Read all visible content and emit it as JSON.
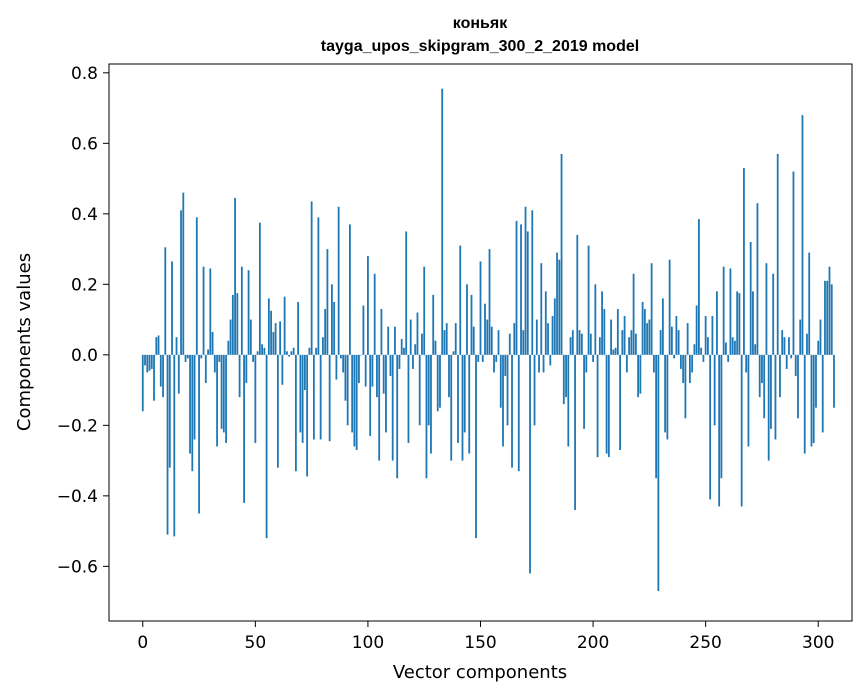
{
  "chart_data": {
    "type": "bar",
    "title": "коньяк",
    "subtitle": "tayga_upos_skipgram_300_2_2019 model",
    "xlabel": "Vector components",
    "ylabel": "Components values",
    "xlim": [
      -15,
      315
    ],
    "ylim": [
      -0.755,
      0.825
    ],
    "xticks": [
      0,
      50,
      100,
      150,
      200,
      250,
      300
    ],
    "yticks": [
      -0.6,
      -0.4,
      -0.2,
      0.0,
      0.2,
      0.4,
      0.6,
      0.8
    ],
    "xtick_labels": [
      "0",
      "50",
      "100",
      "150",
      "200",
      "250",
      "300"
    ],
    "ytick_labels": [
      "−0.6",
      "−0.4",
      "−0.2",
      "0.0",
      "0.2",
      "0.4",
      "0.6",
      "0.8"
    ],
    "grid": false,
    "bar_color": "#1f77b4",
    "values": [
      -0.16,
      -0.03,
      -0.05,
      -0.045,
      -0.04,
      -0.13,
      0.05,
      0.055,
      -0.09,
      -0.12,
      0.305,
      -0.51,
      -0.32,
      0.265,
      -0.515,
      0.05,
      -0.11,
      0.41,
      0.46,
      -0.02,
      -0.01,
      -0.28,
      -0.33,
      -0.24,
      0.39,
      -0.45,
      -0.01,
      0.25,
      -0.08,
      0.015,
      0.245,
      0.065,
      -0.05,
      -0.26,
      -0.02,
      -0.21,
      -0.22,
      -0.25,
      0.04,
      0.1,
      0.17,
      0.445,
      0.175,
      -0.12,
      0.25,
      -0.42,
      -0.08,
      0.24,
      0.1,
      -0.02,
      -0.25,
      0.01,
      0.375,
      0.03,
      0.02,
      -0.52,
      0.16,
      0.125,
      0.065,
      0.09,
      -0.32,
      0.095,
      -0.085,
      0.165,
      0.01,
      -0.005,
      0.01,
      0.02,
      -0.33,
      0.15,
      -0.22,
      -0.25,
      -0.1,
      -0.345,
      0.02,
      0.435,
      -0.24,
      0.02,
      0.39,
      -0.24,
      0.05,
      0.13,
      0.3,
      -0.245,
      0.2,
      0.15,
      -0.07,
      0.42,
      -0.01,
      -0.05,
      -0.13,
      -0.2,
      0.37,
      -0.22,
      -0.26,
      -0.27,
      -0.08,
      0.0,
      0.14,
      -0.09,
      0.28,
      -0.23,
      -0.09,
      0.23,
      -0.12,
      -0.3,
      0.13,
      -0.11,
      -0.22,
      0.08,
      -0.06,
      -0.3,
      0.08,
      -0.35,
      -0.04,
      0.045,
      0.02,
      0.35,
      -0.25,
      0.1,
      -0.04,
      0.03,
      0.12,
      -0.2,
      0.06,
      0.25,
      -0.35,
      -0.2,
      -0.28,
      0.17,
      0.04,
      -0.16,
      -0.15,
      0.755,
      0.07,
      0.09,
      -0.12,
      -0.3,
      0.01,
      0.09,
      -0.25,
      0.31,
      -0.3,
      -0.22,
      0.2,
      -0.28,
      0.17,
      0.08,
      -0.52,
      -0.02,
      0.265,
      -0.02,
      0.145,
      0.1,
      0.3,
      0.08,
      -0.05,
      -0.02,
      0.07,
      -0.15,
      -0.26,
      -0.06,
      -0.2,
      0.06,
      -0.32,
      0.09,
      0.38,
      -0.33,
      0.37,
      0.07,
      0.42,
      0.35,
      -0.62,
      0.41,
      -0.2,
      0.1,
      -0.05,
      0.26,
      -0.05,
      0.18,
      0.09,
      -0.03,
      0.11,
      0.16,
      0.29,
      0.27,
      0.57,
      -0.14,
      -0.12,
      -0.26,
      0.05,
      0.07,
      -0.44,
      0.34,
      0.07,
      0.06,
      -0.21,
      -0.05,
      0.31,
      0.06,
      -0.02,
      0.2,
      -0.29,
      0.05,
      0.18,
      0.13,
      -0.28,
      -0.29,
      0.1,
      0.015,
      0.02,
      0.13,
      -0.27,
      0.07,
      0.11,
      -0.05,
      0.05,
      0.07,
      0.23,
      0.06,
      -0.12,
      -0.11,
      0.15,
      0.13,
      0.09,
      0.1,
      0.26,
      -0.05,
      -0.35,
      -0.67,
      0.07,
      0.16,
      -0.22,
      -0.24,
      0.27,
      0.08,
      -0.01,
      0.11,
      0.07,
      -0.04,
      -0.08,
      -0.18,
      0.09,
      -0.08,
      -0.05,
      0.03,
      0.14,
      0.385,
      0.02,
      -0.02,
      0.11,
      0.05,
      -0.41,
      0.11,
      -0.2,
      0.18,
      -0.43,
      -0.35,
      0.25,
      0.035,
      -0.02,
      0.245,
      0.05,
      0.04,
      0.18,
      0.175,
      -0.43,
      0.53,
      -0.05,
      -0.26,
      0.32,
      0.18,
      0.03,
      0.43,
      -0.12,
      -0.08,
      -0.18,
      0.26,
      -0.3,
      -0.21,
      0.23,
      -0.24,
      0.57,
      -0.12,
      0.07,
      0.05,
      -0.04,
      0.05,
      -0.01,
      0.52,
      -0.06,
      -0.18,
      0.1,
      0.68,
      -0.28,
      0.06,
      0.29,
      -0.26,
      -0.25,
      -0.15,
      0.04,
      0.1,
      -0.22,
      0.21,
      0.21,
      0.25,
      0.2,
      -0.15
    ],
    "value_precision_note": "estimated from gridlines"
  }
}
